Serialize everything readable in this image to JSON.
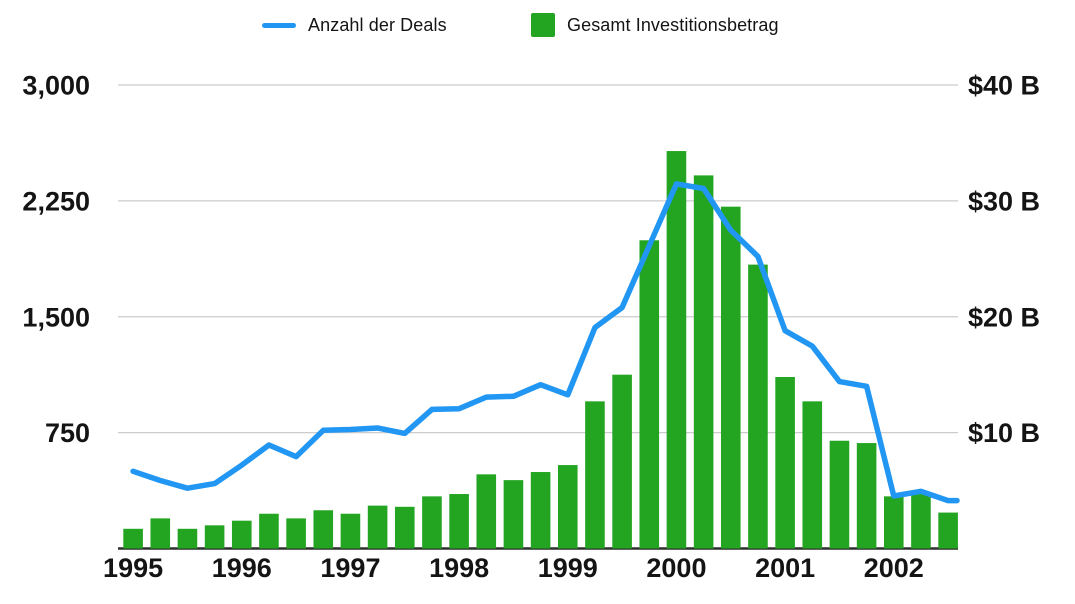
{
  "chart": {
    "background": "#ffffff",
    "gridline_color": "#cccccc",
    "baseline_color": "#2e2e2e",
    "text_color": "#141414",
    "legend_position": "top"
  },
  "chart_data": {
    "type": "combo",
    "title": "",
    "xlabel": "",
    "ylabel_left": "",
    "ylabel_right": "",
    "grid": true,
    "legend_position": "top",
    "categories": [
      "1995 Q1",
      "1995 Q2",
      "1995 Q3",
      "1995 Q4",
      "1996 Q1",
      "1996 Q2",
      "1996 Q3",
      "1996 Q4",
      "1997 Q1",
      "1997 Q2",
      "1997 Q3",
      "1997 Q4",
      "1998 Q1",
      "1998 Q2",
      "1998 Q3",
      "1998 Q4",
      "1999 Q1",
      "1999 Q2",
      "1999 Q3",
      "1999 Q4",
      "2000 Q1",
      "2000 Q2",
      "2000 Q3",
      "2000 Q4",
      "2001 Q1",
      "2001 Q2",
      "2001 Q3",
      "2001 Q4",
      "2002 Q1",
      "2002 Q2",
      "2002 Q3"
    ],
    "series": [
      {
        "name": "Anzahl der Deals",
        "type": "line",
        "axis": "left",
        "color": "#2196F3",
        "values": [
          500,
          440,
          390,
          420,
          540,
          670,
          595,
          765,
          770,
          780,
          745,
          900,
          905,
          980,
          985,
          1060,
          995,
          1430,
          1560,
          1960,
          2360,
          2330,
          2060,
          1890,
          1410,
          1310,
          1080,
          1050,
          340,
          370,
          310
        ]
      },
      {
        "name": "Gesamt Investitionsbetrag",
        "type": "bar",
        "axis": "right",
        "color": "#23A522",
        "values": [
          1.7,
          2.6,
          1.7,
          2.0,
          2.4,
          3.0,
          2.6,
          3.3,
          3.0,
          3.7,
          3.6,
          4.5,
          4.7,
          6.4,
          5.9,
          6.6,
          7.2,
          12.7,
          15.0,
          26.6,
          34.3,
          32.2,
          29.5,
          24.5,
          14.8,
          12.7,
          9.3,
          9.1,
          4.5,
          4.7,
          3.1
        ]
      }
    ],
    "left_axis": {
      "min": 0,
      "max": 3000,
      "ticks": [
        750,
        1500,
        2250,
        3000
      ],
      "tick_labels": [
        "750",
        "1,500",
        "2,250",
        "3,000"
      ]
    },
    "right_axis": {
      "min": 0,
      "max": 40,
      "ticks": [
        10,
        20,
        30,
        40
      ],
      "tick_labels": [
        "$10 B",
        "$20 B",
        "$30 B",
        "$40 B"
      ]
    },
    "x_axis": {
      "labels": [
        "1995",
        "1996",
        "1997",
        "1998",
        "1999",
        "2000",
        "2001",
        "2002"
      ]
    }
  }
}
